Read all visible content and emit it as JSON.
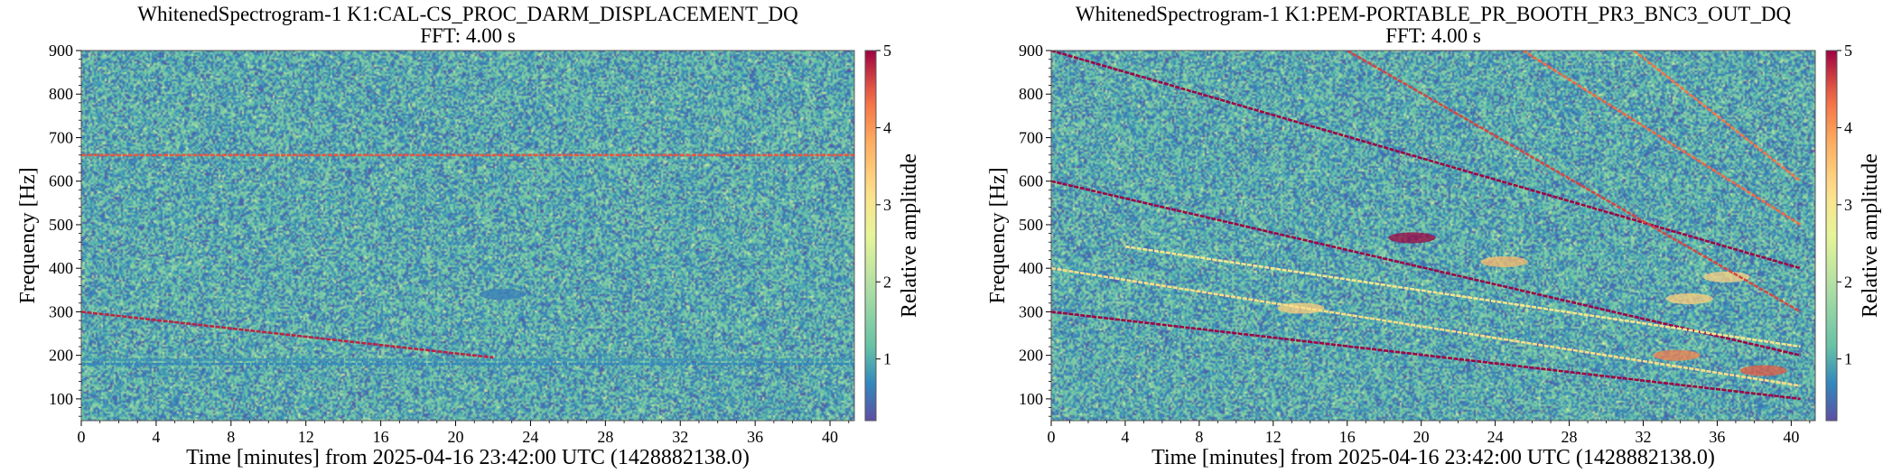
{
  "chart_data": [
    {
      "type": "heatmap",
      "title": "WhitenedSpectrogram-1 K1:CAL-CS_PROC_DARM_DISPLACEMENT_DQ",
      "subtitle": "FFT: 4.00 s",
      "xlabel": "Time [minutes] from 2025-04-16 23:42:00 UTC (1428882138.0)",
      "ylabel": "Frequency [Hz]",
      "xlim": [
        0,
        41.3
      ],
      "ylim": [
        50,
        900
      ],
      "xticks": [
        0,
        4,
        8,
        12,
        16,
        20,
        24,
        28,
        32,
        36,
        40
      ],
      "yticks": [
        100,
        200,
        300,
        400,
        500,
        600,
        700,
        800,
        900
      ],
      "colorbar": {
        "label": "Relative amplitude",
        "range": [
          0.2,
          5
        ],
        "ticks": [
          1,
          2,
          3,
          4,
          5
        ]
      },
      "lines": [
        {
          "name": "line-660",
          "x": [
            0,
            41.3
          ],
          "y": [
            660,
            660
          ],
          "amplitude": 4.5
        },
        {
          "name": "line-190",
          "x": [
            0,
            41.3
          ],
          "y": [
            190,
            190
          ],
          "amplitude": 0.8
        },
        {
          "name": "line-180",
          "x": [
            0,
            41.3
          ],
          "y": [
            180,
            180
          ],
          "amplitude": 0.7
        },
        {
          "name": "chirp-300",
          "x": [
            0,
            22
          ],
          "y": [
            300,
            195
          ],
          "amplitude": 4.8
        }
      ],
      "blobs": [
        {
          "x": 22.5,
          "y": 340,
          "amplitude": 0.6
        }
      ]
    },
    {
      "type": "heatmap",
      "title": "WhitenedSpectrogram-1 K1:PEM-PORTABLE_PR_BOOTH_PR3_BNC3_OUT_DQ",
      "subtitle": "FFT: 4.00 s",
      "xlabel": "Time [minutes] from 2025-04-16 23:42:00 UTC (1428882138.0)",
      "ylabel": "Frequency [Hz]",
      "xlim": [
        0,
        41.3
      ],
      "ylim": [
        50,
        900
      ],
      "xticks": [
        0,
        4,
        8,
        12,
        16,
        20,
        24,
        28,
        32,
        36,
        40
      ],
      "yticks": [
        100,
        200,
        300,
        400,
        500,
        600,
        700,
        800,
        900
      ],
      "colorbar": {
        "label": "Relative amplitude",
        "range": [
          0.2,
          5
        ],
        "ticks": [
          1,
          2,
          3,
          4,
          5
        ]
      },
      "lines": [
        {
          "name": "chirp-300",
          "x": [
            0,
            40.5
          ],
          "y": [
            300,
            100
          ],
          "amplitude": 5
        },
        {
          "name": "chirp-600",
          "x": [
            0,
            40.5
          ],
          "y": [
            600,
            200
          ],
          "amplitude": 5
        },
        {
          "name": "chirp-900",
          "x": [
            0,
            40.5
          ],
          "y": [
            900,
            400
          ],
          "amplitude": 5
        },
        {
          "name": "chirp-1200",
          "x": [
            16.0,
            40.5
          ],
          "y": [
            900,
            300
          ],
          "amplitude": 4.6
        },
        {
          "name": "chirp-1500",
          "x": [
            25.5,
            40.5
          ],
          "y": [
            900,
            500
          ],
          "amplitude": 4.4
        },
        {
          "name": "chirp-1800",
          "x": [
            31.5,
            40.5
          ],
          "y": [
            900,
            600
          ],
          "amplitude": 4.3
        },
        {
          "name": "faint-400",
          "x": [
            0,
            40.5
          ],
          "y": [
            400,
            130
          ],
          "amplitude": 3.2
        },
        {
          "name": "faint-450",
          "x": [
            4,
            40.5
          ],
          "y": [
            450,
            220
          ],
          "amplitude": 3.0
        }
      ],
      "blobs": [
        {
          "x": 19.5,
          "y": 470,
          "amplitude": 5
        },
        {
          "x": 24.5,
          "y": 415,
          "amplitude": 3.6
        },
        {
          "x": 13.5,
          "y": 308,
          "amplitude": 3.4
        },
        {
          "x": 33.8,
          "y": 200,
          "amplitude": 4.2
        },
        {
          "x": 38.5,
          "y": 165,
          "amplitude": 4.5
        },
        {
          "x": 34.5,
          "y": 330,
          "amplitude": 3.4
        },
        {
          "x": 36.5,
          "y": 380,
          "amplitude": 3.3
        }
      ]
    }
  ]
}
